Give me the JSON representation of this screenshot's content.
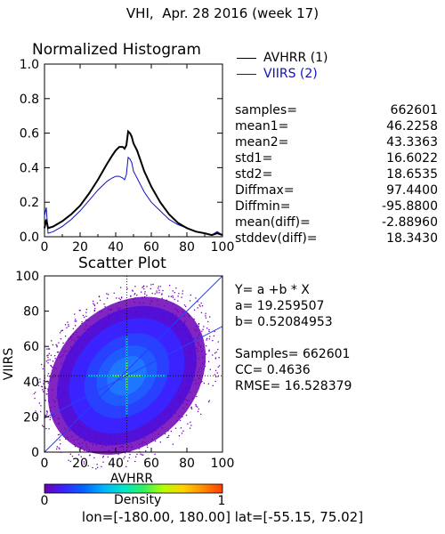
{
  "title": "VHI,  Apr. 28 2016 (week 17)",
  "footer": "lon=[-180.00, 180.00] lat=[-55.15, 75.02]",
  "colorbar": {
    "label": "Density",
    "tick_min": "0",
    "tick_max": "1",
    "colors": [
      "#6b00b5",
      "#3a23ff",
      "#0066ff",
      "#00b4ff",
      "#00e6c8",
      "#30f060",
      "#b4ff00",
      "#ffd200",
      "#ff8c00",
      "#ff3c00"
    ]
  },
  "histogram_stats": [
    {
      "label": "samples=",
      "value": "662601"
    },
    {
      "label": "mean1=",
      "value": "46.2258"
    },
    {
      "label": "mean2=",
      "value": "43.3363"
    },
    {
      "label": "std1=",
      "value": "16.6022"
    },
    {
      "label": "std2=",
      "value": "18.6535"
    },
    {
      "label": "Diffmax=",
      "value": "97.4400"
    },
    {
      "label": "Diffmin=",
      "value": "-95.8800"
    },
    {
      "label": "mean(diff)=",
      "value": "-2.88960"
    },
    {
      "label": "stddev(diff)=",
      "value": "18.3430"
    }
  ],
  "scatter_stats": [
    "Y= a +b * X",
    "a= 19.259507",
    "b= 0.52084953",
    "",
    "Samples= 662601",
    "CC=  0.4636",
    "RMSE= 16.528379"
  ],
  "chart_data": [
    {
      "type": "line",
      "title": "Normalized Histogram",
      "xlabel": "",
      "ylabel": "",
      "xlim": [
        0,
        100
      ],
      "ylim": [
        0,
        1.0
      ],
      "xticks": [
        "0",
        "20",
        "40",
        "60",
        "80",
        "100"
      ],
      "yticks": [
        "0.0",
        "0.2",
        "0.4",
        "0.6",
        "0.8",
        "1.0"
      ],
      "legend_position": "right, outside",
      "series": [
        {
          "name": "AVHRR (1)",
          "color": "#000000",
          "x": [
            0,
            1,
            2,
            5,
            10,
            15,
            20,
            25,
            30,
            35,
            38,
            40,
            42,
            44,
            45,
            46,
            47,
            48,
            49,
            50,
            51,
            52,
            54,
            56,
            60,
            65,
            70,
            75,
            80,
            85,
            90,
            94,
            97,
            100
          ],
          "y": [
            0.05,
            0.1,
            0.05,
            0.06,
            0.09,
            0.13,
            0.18,
            0.25,
            0.33,
            0.42,
            0.47,
            0.5,
            0.52,
            0.52,
            0.51,
            0.53,
            0.61,
            0.6,
            0.58,
            0.54,
            0.52,
            0.5,
            0.44,
            0.38,
            0.29,
            0.2,
            0.13,
            0.08,
            0.05,
            0.03,
            0.02,
            0.01,
            0.02,
            0.01
          ]
        },
        {
          "name": "VIIRS (2)",
          "color": "#1010c0",
          "x": [
            0,
            1,
            2,
            5,
            10,
            15,
            20,
            25,
            30,
            35,
            38,
            40,
            42,
            44,
            45,
            46,
            47,
            48,
            49,
            50,
            51,
            52,
            54,
            56,
            60,
            65,
            70,
            75,
            80,
            85,
            90,
            94,
            97,
            100
          ],
          "y": [
            0.12,
            0.17,
            0.02,
            0.03,
            0.06,
            0.1,
            0.15,
            0.21,
            0.27,
            0.32,
            0.34,
            0.35,
            0.35,
            0.34,
            0.33,
            0.36,
            0.46,
            0.45,
            0.43,
            0.38,
            0.36,
            0.34,
            0.3,
            0.26,
            0.2,
            0.15,
            0.1,
            0.07,
            0.05,
            0.03,
            0.02,
            0.01,
            0.03,
            0.01
          ]
        }
      ]
    },
    {
      "type": "scatter",
      "title": "Scatter Plot",
      "xlabel": "AVHRR",
      "ylabel": "VIIRS",
      "xlim": [
        0,
        100
      ],
      "ylim": [
        0,
        100
      ],
      "xticks": [
        "0",
        "20",
        "40",
        "60",
        "80",
        "100"
      ],
      "yticks": [
        "0",
        "20",
        "40",
        "60",
        "80",
        "100"
      ],
      "regression": {
        "a": 19.259507,
        "b": 0.52084953
      },
      "one_to_one_line": true,
      "mean_crosshair": {
        "x": 46.2258,
        "y": 43.3363
      },
      "samples": 662601
    }
  ]
}
